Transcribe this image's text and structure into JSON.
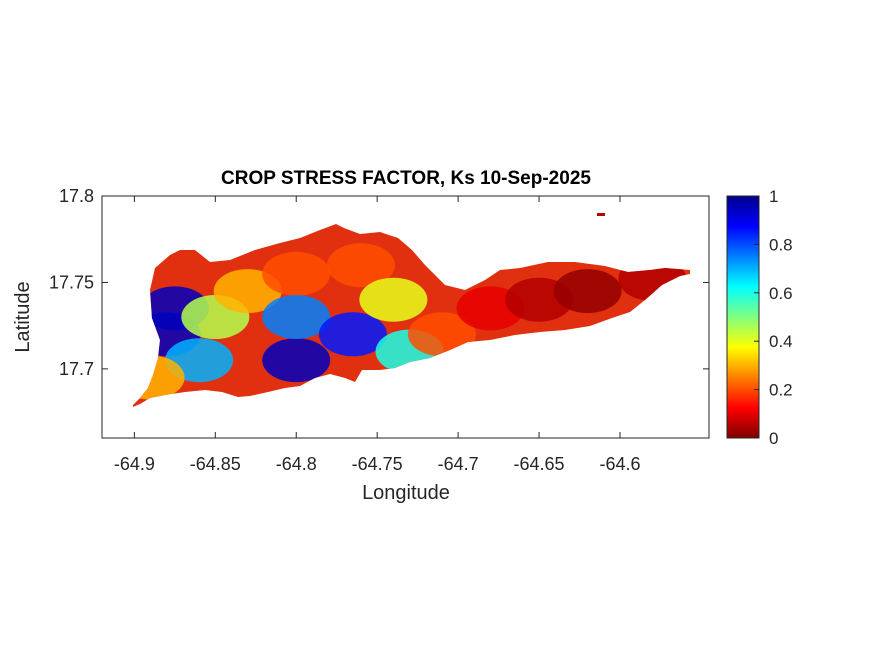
{
  "chart_data": {
    "type": "heatmap",
    "title": "CROP STRESS FACTOR, Ks  10-Sep-2025",
    "xlabel": "Longitude",
    "ylabel": "Latitude",
    "xlim": [
      -64.92,
      -64.545
    ],
    "ylim": [
      17.66,
      17.8
    ],
    "x_ticks": [
      -64.9,
      -64.85,
      -64.8,
      -64.75,
      -64.7,
      -64.65,
      -64.6
    ],
    "x_tick_labels": [
      "-64.9",
      "-64.85",
      "-64.8",
      "-64.75",
      "-64.7",
      "-64.65",
      "-64.6"
    ],
    "y_ticks": [
      17.7,
      17.75,
      17.8
    ],
    "y_tick_labels": [
      "17.7",
      "17.75",
      "17.8"
    ],
    "colorbar": {
      "min": 0,
      "max": 1,
      "ticks": [
        0,
        0.2,
        0.4,
        0.6,
        0.8,
        1
      ],
      "tick_labels": [
        "0",
        "0.2",
        "0.4",
        "0.6",
        "0.8",
        "1"
      ],
      "colormap": "jet"
    },
    "regions": [
      {
        "lon": -64.875,
        "lat": 17.735,
        "value": 0.95
      },
      {
        "lon": -64.88,
        "lat": 17.72,
        "value": 0.95
      },
      {
        "lon": -64.86,
        "lat": 17.705,
        "value": 0.7
      },
      {
        "lon": -64.85,
        "lat": 17.73,
        "value": 0.45
      },
      {
        "lon": -64.83,
        "lat": 17.745,
        "value": 0.3
      },
      {
        "lon": -64.8,
        "lat": 17.755,
        "value": 0.2
      },
      {
        "lon": -64.8,
        "lat": 17.705,
        "value": 0.95
      },
      {
        "lon": -64.8,
        "lat": 17.73,
        "value": 0.75
      },
      {
        "lon": -64.765,
        "lat": 17.72,
        "value": 0.85
      },
      {
        "lon": -64.76,
        "lat": 17.76,
        "value": 0.2
      },
      {
        "lon": -64.74,
        "lat": 17.74,
        "value": 0.4
      },
      {
        "lon": -64.73,
        "lat": 17.71,
        "value": 0.6
      },
      {
        "lon": -64.71,
        "lat": 17.72,
        "value": 0.2
      },
      {
        "lon": -64.68,
        "lat": 17.735,
        "value": 0.1
      },
      {
        "lon": -64.65,
        "lat": 17.74,
        "value": 0.05
      },
      {
        "lon": -64.62,
        "lat": 17.745,
        "value": 0.02
      },
      {
        "lon": -64.58,
        "lat": 17.752,
        "value": 0.05
      },
      {
        "lon": -64.89,
        "lat": 17.695,
        "value": 0.3
      }
    ]
  }
}
